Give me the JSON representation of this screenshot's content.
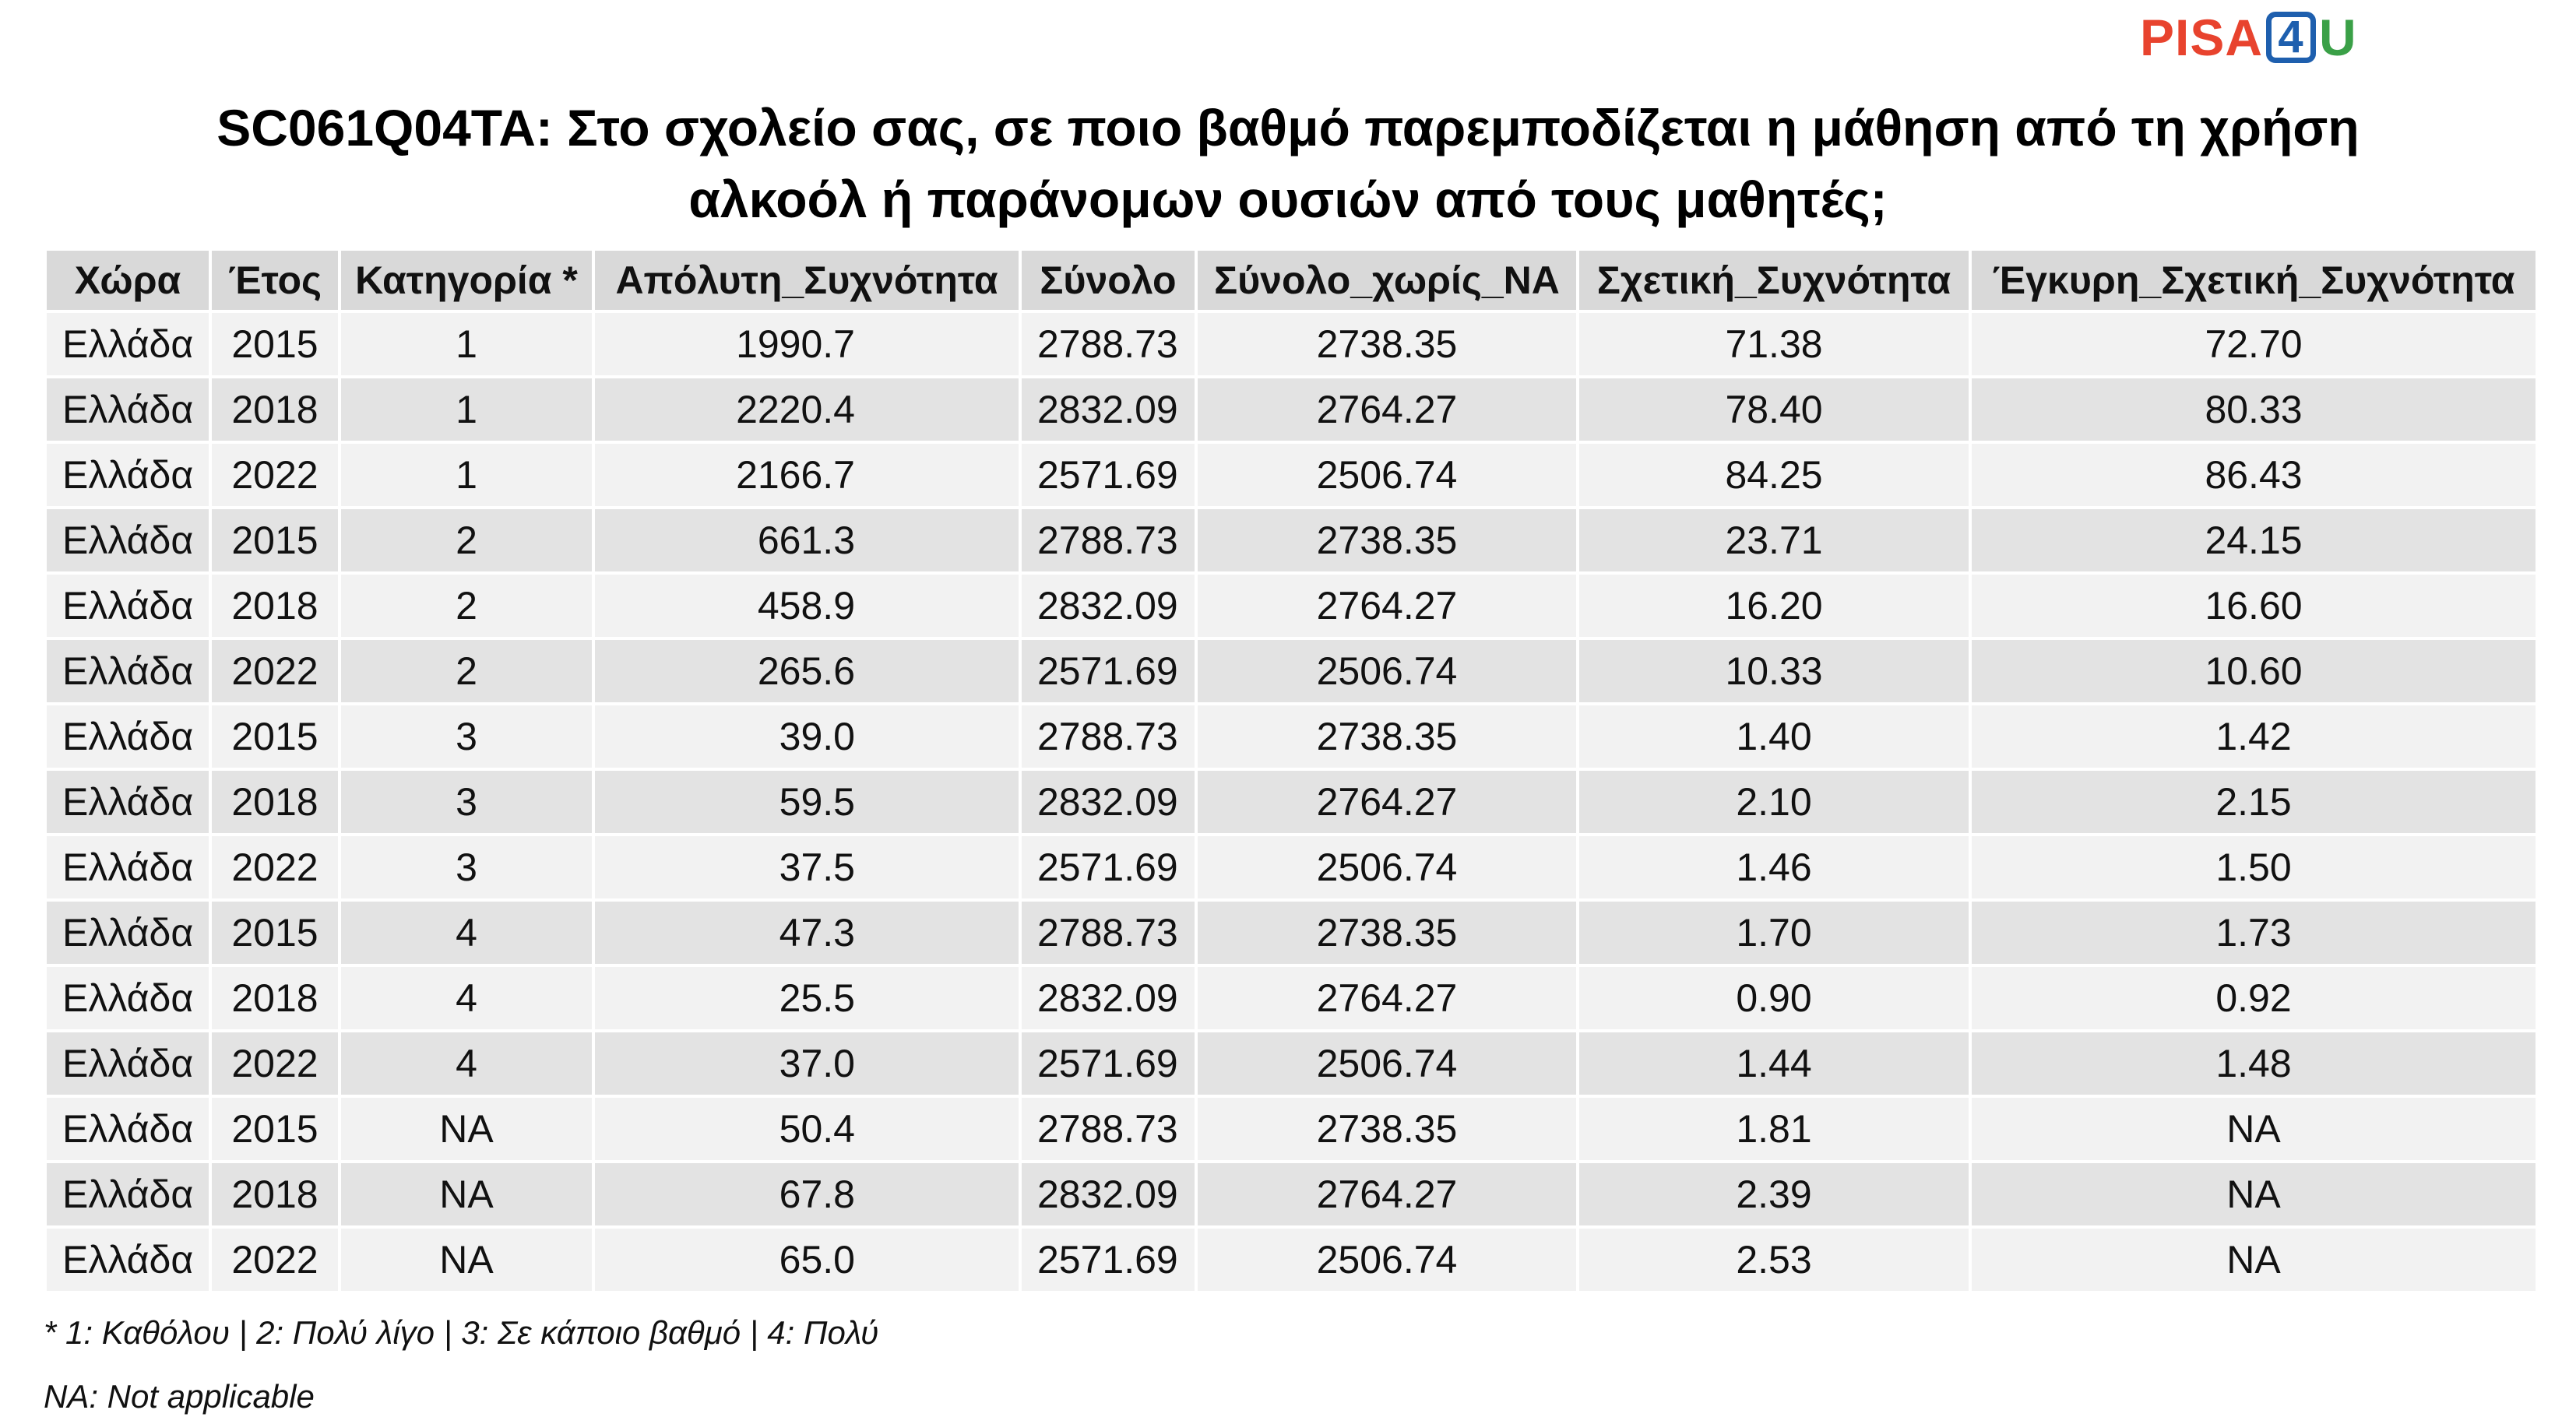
{
  "logo": {
    "part1": "PISA",
    "part2": "4",
    "part3": "U",
    "colors": {
      "pisa": "#e8432e",
      "four": "#1e5fae",
      "u": "#3aa047"
    }
  },
  "title": {
    "line1": "SC061Q04TA: Στο σχολείο σας, σε ποιο βαθμό παρεμποδίζεται η μάθηση από τη χρήση",
    "line2": "αλκοόλ ή παράνομων ουσιών από τους μαθητές;"
  },
  "table": {
    "headers": [
      "Χώρα",
      "Έτος",
      "Κατηγορία *",
      "Απόλυτη_Συχνότητα",
      "Σύνολο",
      "Σύνολο_χωρίς_NA",
      "Σχετική_Συχνότητα",
      "Έγκυρη_Σχετική_Συχνότητα"
    ],
    "rows": [
      [
        "Ελλάδα",
        "2015",
        "1",
        "1990.7",
        "2788.73",
        "2738.35",
        "71.38",
        "72.70"
      ],
      [
        "Ελλάδα",
        "2018",
        "1",
        "2220.4",
        "2832.09",
        "2764.27",
        "78.40",
        "80.33"
      ],
      [
        "Ελλάδα",
        "2022",
        "1",
        "2166.7",
        "2571.69",
        "2506.74",
        "84.25",
        "86.43"
      ],
      [
        "Ελλάδα",
        "2015",
        "2",
        "661.3",
        "2788.73",
        "2738.35",
        "23.71",
        "24.15"
      ],
      [
        "Ελλάδα",
        "2018",
        "2",
        "458.9",
        "2832.09",
        "2764.27",
        "16.20",
        "16.60"
      ],
      [
        "Ελλάδα",
        "2022",
        "2",
        "265.6",
        "2571.69",
        "2506.74",
        "10.33",
        "10.60"
      ],
      [
        "Ελλάδα",
        "2015",
        "3",
        "39.0",
        "2788.73",
        "2738.35",
        "1.40",
        "1.42"
      ],
      [
        "Ελλάδα",
        "2018",
        "3",
        "59.5",
        "2832.09",
        "2764.27",
        "2.10",
        "2.15"
      ],
      [
        "Ελλάδα",
        "2022",
        "3",
        "37.5",
        "2571.69",
        "2506.74",
        "1.46",
        "1.50"
      ],
      [
        "Ελλάδα",
        "2015",
        "4",
        "47.3",
        "2788.73",
        "2738.35",
        "1.70",
        "1.73"
      ],
      [
        "Ελλάδα",
        "2018",
        "4",
        "25.5",
        "2832.09",
        "2764.27",
        "0.90",
        "0.92"
      ],
      [
        "Ελλάδα",
        "2022",
        "4",
        "37.0",
        "2571.69",
        "2506.74",
        "1.44",
        "1.48"
      ],
      [
        "Ελλάδα",
        "2015",
        "NA",
        "50.4",
        "2788.73",
        "2738.35",
        "1.81",
        "NA"
      ],
      [
        "Ελλάδα",
        "2018",
        "NA",
        "67.8",
        "2832.09",
        "2764.27",
        "2.39",
        "NA"
      ],
      [
        "Ελλάδα",
        "2022",
        "NA",
        "65.0",
        "2571.69",
        "2506.74",
        "2.53",
        "NA"
      ]
    ]
  },
  "footnotes": {
    "categories": "* 1: Καθόλου | 2: Πολύ λίγο | 3: Σε κάποιο βαθμό | 4: Πολύ",
    "na": "NA: Not applicable"
  },
  "colors": {
    "header_bg": "#d9d9d9",
    "row_light": "#f2f2f2",
    "row_dark": "#e3e3e3"
  }
}
